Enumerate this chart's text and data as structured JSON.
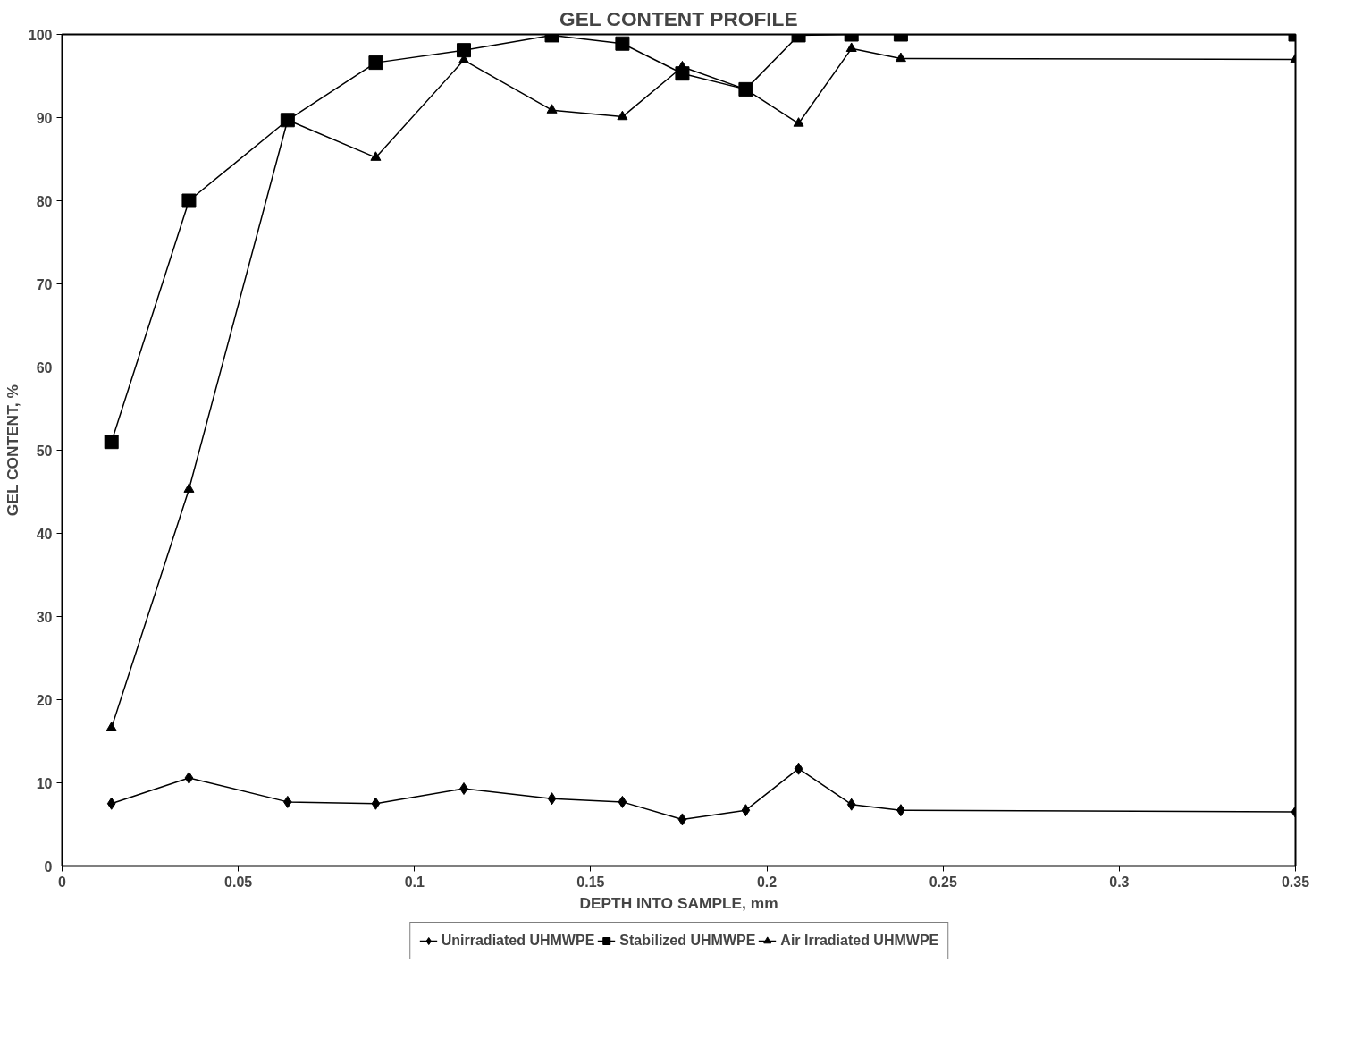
{
  "chart_data": {
    "type": "line",
    "title": "GEL CONTENT PROFILE",
    "xlabel": "DEPTH INTO SAMPLE, mm",
    "ylabel": "GEL CONTENT, %",
    "x": [
      0.014,
      0.036,
      0.064,
      0.089,
      0.114,
      0.139,
      0.159,
      0.176,
      0.194,
      0.209,
      0.224,
      0.238,
      0.35
    ],
    "series": [
      {
        "name": "Unirradiated UHMWPE",
        "color": "#000000",
        "marker": "diamond",
        "values": [
          7.5,
          10.6,
          7.7,
          7.5,
          9.3,
          8.1,
          7.7,
          5.6,
          6.7,
          11.7,
          7.4,
          6.7,
          6.5
        ]
      },
      {
        "name": "Stabilized UHMWPE",
        "color": "#000000",
        "marker": "square",
        "values": [
          51,
          80,
          89.7,
          96.6,
          98.1,
          99.9,
          98.9,
          95.3,
          93.4,
          99.9,
          100,
          100,
          100
        ]
      },
      {
        "name": "Air Irradiated UHMWPE",
        "color": "#000000",
        "marker": "triangle",
        "values": [
          16.6,
          45.3,
          89.7,
          85.2,
          96.9,
          90.9,
          90.1,
          96.1,
          93.4,
          89.3,
          98.3,
          97.1,
          97.0
        ]
      }
    ],
    "xlim": [
      0,
      0.35
    ],
    "ylim": [
      0,
      100
    ],
    "xticks": [
      0,
      0.05,
      0.1,
      0.15,
      0.2,
      0.25,
      0.3,
      0.35
    ],
    "yticks": [
      0,
      10,
      20,
      30,
      40,
      50,
      60,
      70,
      80,
      90,
      100
    ],
    "grid": false,
    "legend": "bottom",
    "line_style": "solid"
  }
}
